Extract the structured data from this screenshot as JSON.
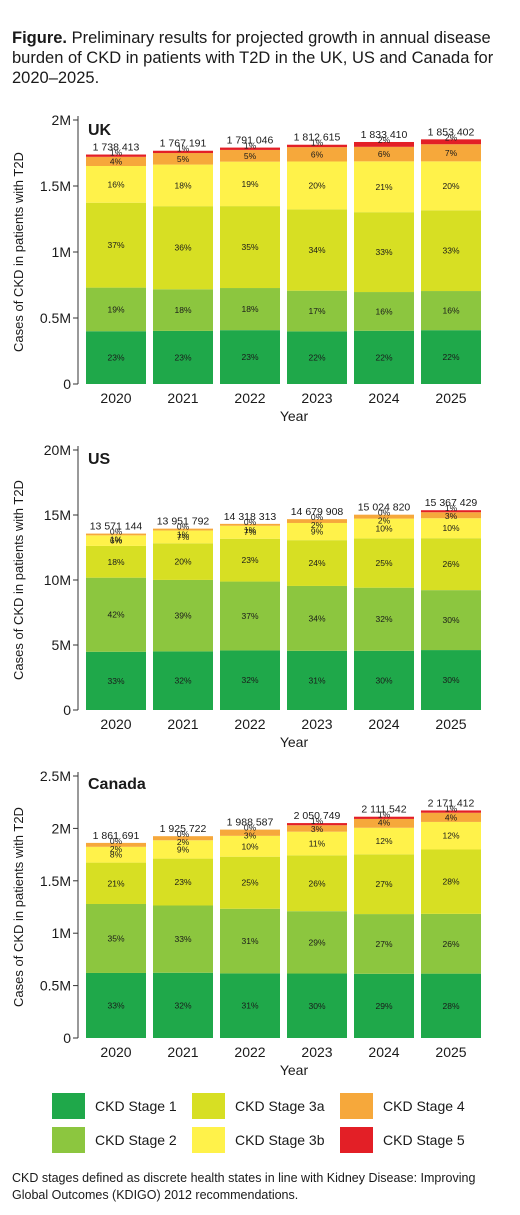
{
  "caption": {
    "bold": "Figure.",
    "text": " Preliminary results for projected growth in annual disease burden of CKD in patients with T2D in the UK, US and Canada for 2020–2025."
  },
  "footnote": "CKD stages defined as discrete health states in line with Kidney Disease: Improving Global Outcomes (KDIGO) 2012 recommendations.",
  "legend": [
    {
      "label": "CKD Stage 1",
      "color": "#1fa84a"
    },
    {
      "label": "CKD Stage 2",
      "color": "#8cc63f"
    },
    {
      "label": "CKD Stage 3a",
      "color": "#d7df23"
    },
    {
      "label": "CKD Stage 3b",
      "color": "#fff24a"
    },
    {
      "label": "CKD Stage 4",
      "color": "#f6a83b"
    },
    {
      "label": "CKD Stage 5",
      "color": "#e31f26"
    }
  ],
  "chart_data": [
    {
      "type": "bar",
      "stacked": true,
      "title": "UK",
      "xlabel": "Year",
      "ylabel": "Cases of CKD in patients with T2D",
      "ylim": [
        0,
        2000000
      ],
      "yticks": [
        "0",
        "0.5M",
        "1M",
        "1.5M",
        "2M"
      ],
      "categories": [
        "2020",
        "2021",
        "2022",
        "2023",
        "2024",
        "2025"
      ],
      "totals": [
        1738413,
        1767191,
        1791046,
        1812615,
        1833410,
        1853402
      ],
      "total_labels": [
        "1 738 413",
        "1 767 191",
        "1 791 046",
        "1 812 615",
        "1 833 410",
        "1 853 402"
      ],
      "series": [
        {
          "name": "CKD Stage 1",
          "labels": [
            "23%",
            "23%",
            "23%",
            "22%",
            "22%",
            "22%"
          ]
        },
        {
          "name": "CKD Stage 2",
          "labels": [
            "19%",
            "18%",
            "18%",
            "17%",
            "16%",
            "16%"
          ]
        },
        {
          "name": "CKD Stage 3a",
          "labels": [
            "37%",
            "36%",
            "35%",
            "34%",
            "33%",
            "33%"
          ]
        },
        {
          "name": "CKD Stage 3b",
          "labels": [
            "16%",
            "18%",
            "19%",
            "20%",
            "21%",
            "20%"
          ]
        },
        {
          "name": "CKD Stage 4",
          "labels": [
            "4%",
            "5%",
            "5%",
            "6%",
            "6%",
            "7%"
          ]
        },
        {
          "name": "CKD Stage 5",
          "labels": [
            "1%",
            "1%",
            "1%",
            "1%",
            "2%",
            "2%"
          ]
        }
      ]
    },
    {
      "type": "bar",
      "stacked": true,
      "title": "US",
      "xlabel": "Year",
      "ylabel": "Cases of CKD in patients with T2D",
      "ylim": [
        0,
        20000000
      ],
      "yticks": [
        "0",
        "5M",
        "10M",
        "15M",
        "20M"
      ],
      "categories": [
        "2020",
        "2021",
        "2022",
        "2023",
        "2024",
        "2025"
      ],
      "totals": [
        13571144,
        13951792,
        14318313,
        14679908,
        15024820,
        15367429
      ],
      "total_labels": [
        "13 571 144",
        "13 951 792",
        "14 318 313",
        "14 679 908",
        "15 024 820",
        "15 367 429"
      ],
      "series": [
        {
          "name": "CKD Stage 1",
          "labels": [
            "33%",
            "32%",
            "32%",
            "31%",
            "30%",
            "30%"
          ]
        },
        {
          "name": "CKD Stage 2",
          "labels": [
            "42%",
            "39%",
            "37%",
            "34%",
            "32%",
            "30%"
          ]
        },
        {
          "name": "CKD Stage 3a",
          "labels": [
            "18%",
            "20%",
            "23%",
            "24%",
            "25%",
            "26%"
          ]
        },
        {
          "name": "CKD Stage 3b",
          "labels": [
            "6%",
            "7%",
            "7%",
            "9%",
            "10%",
            "10%"
          ]
        },
        {
          "name": "CKD Stage 4",
          "labels": [
            "1%",
            "1%",
            "1%",
            "2%",
            "2%",
            "3%"
          ]
        },
        {
          "name": "CKD Stage 5",
          "labels": [
            "0%",
            "0%",
            "0%",
            "0%",
            "0%",
            "1%"
          ]
        }
      ]
    },
    {
      "type": "bar",
      "stacked": true,
      "title": "Canada",
      "xlabel": "Year",
      "ylabel": "Cases of CKD in patients with T2D",
      "ylim": [
        0,
        2500000
      ],
      "yticks": [
        "0",
        "0.5M",
        "1M",
        "1.5M",
        "2M",
        "2.5M"
      ],
      "categories": [
        "2020",
        "2021",
        "2022",
        "2023",
        "2024",
        "2025"
      ],
      "totals": [
        1861691,
        1925722,
        1988587,
        2050749,
        2111542,
        2171412
      ],
      "total_labels": [
        "1 861 691",
        "1 925 722",
        "1 988 587",
        "2 050 749",
        "2 111 542",
        "2 171 412"
      ],
      "series": [
        {
          "name": "CKD Stage 1",
          "labels": [
            "33%",
            "32%",
            "31%",
            "30%",
            "29%",
            "28%"
          ]
        },
        {
          "name": "CKD Stage 2",
          "labels": [
            "35%",
            "33%",
            "31%",
            "29%",
            "27%",
            "26%"
          ]
        },
        {
          "name": "CKD Stage 3a",
          "labels": [
            "21%",
            "23%",
            "25%",
            "26%",
            "27%",
            "28%"
          ]
        },
        {
          "name": "CKD Stage 3b",
          "labels": [
            "8%",
            "9%",
            "10%",
            "11%",
            "12%",
            "12%"
          ]
        },
        {
          "name": "CKD Stage 4",
          "labels": [
            "2%",
            "2%",
            "3%",
            "3%",
            "4%",
            "4%"
          ]
        },
        {
          "name": "CKD Stage 5",
          "labels": [
            "0%",
            "0%",
            "0%",
            "1%",
            "1%",
            "1%"
          ]
        }
      ]
    }
  ]
}
